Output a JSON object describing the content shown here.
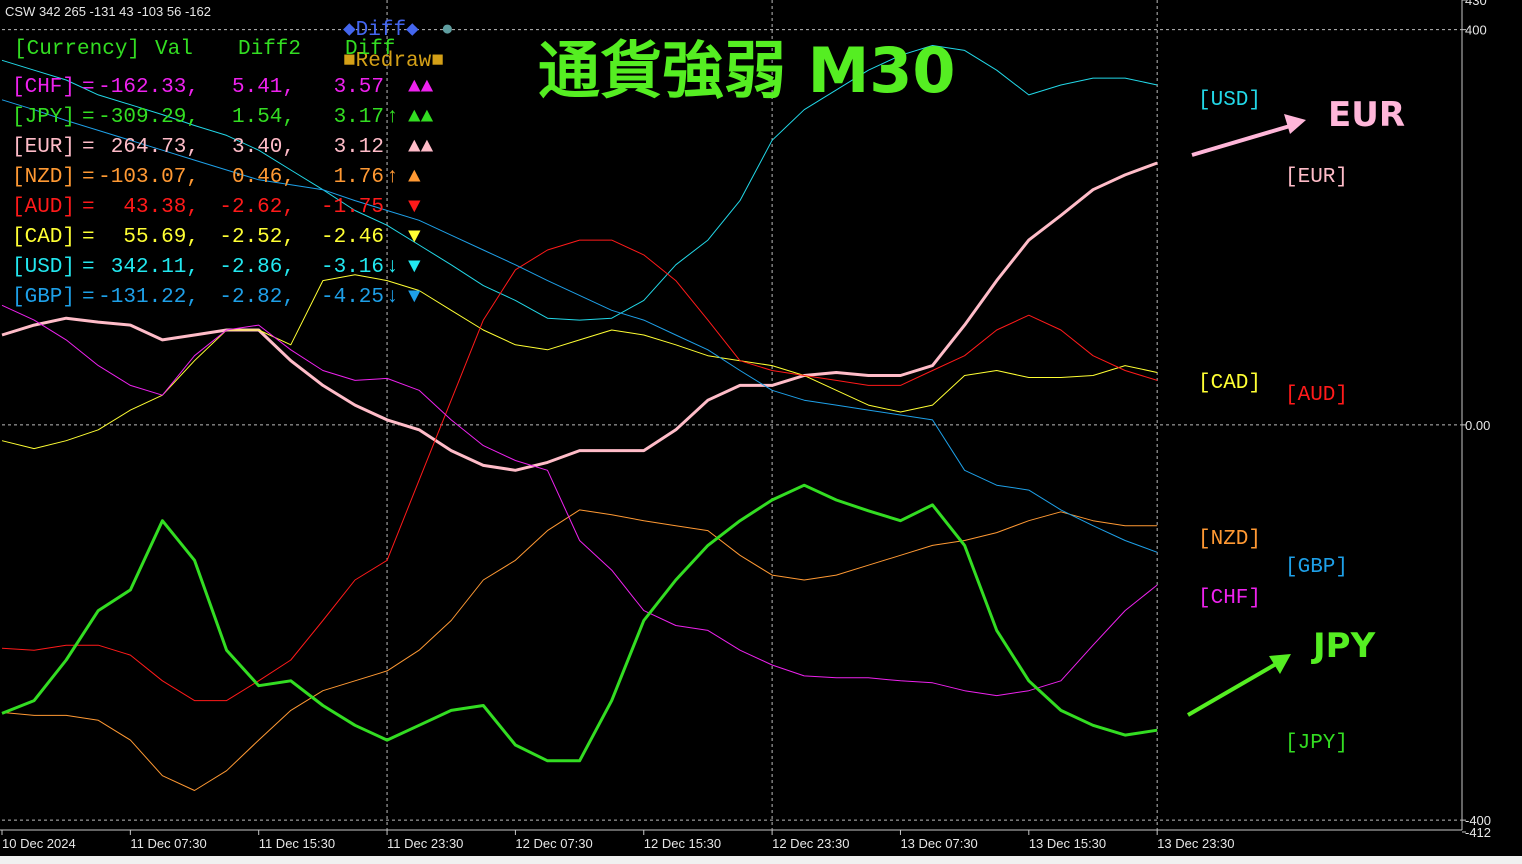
{
  "chart_data": {
    "type": "line",
    "title": "通貨強弱 M30",
    "header": "CSW 342 265 -131 43 -103 56 -162",
    "x": [
      0,
      1,
      2,
      3,
      4,
      5,
      6,
      7,
      8,
      9,
      10,
      11,
      12,
      13,
      14,
      15,
      16,
      17,
      18,
      19,
      20,
      21,
      22,
      23,
      24,
      25,
      26,
      27,
      28,
      29,
      30,
      31,
      32,
      33,
      34,
      35,
      36
    ],
    "xlim": [
      0,
      45.5
    ],
    "xticks": [
      {
        "value": 0,
        "label": "10 Dec 2024"
      },
      {
        "value": 4,
        "label": "11 Dec 07:30"
      },
      {
        "value": 8,
        "label": "11 Dec 15:30"
      },
      {
        "value": 12,
        "label": "11 Dec 23:30"
      },
      {
        "value": 16,
        "label": "12 Dec 07:30"
      },
      {
        "value": 20,
        "label": "12 Dec 15:30"
      },
      {
        "value": 24,
        "label": "12 Dec 23:30"
      },
      {
        "value": 28,
        "label": "13 Dec 07:30"
      },
      {
        "value": 32,
        "label": "13 Dec 15:30"
      },
      {
        "value": 36,
        "label": "13 Dec 23:30"
      }
    ],
    "ylim": [
      -410,
      430
    ],
    "yticks": [
      430,
      400,
      {
        "value": 0,
        "label": "0.00"
      },
      -400,
      -412
    ],
    "grid": true,
    "series": [
      {
        "name": "[USD]",
        "color": "#22d8e8",
        "width": 1,
        "values": [
          369,
          359,
          349,
          334,
          324,
          314,
          303,
          293,
          278,
          258,
          238,
          217,
          202,
          182,
          162,
          141,
          126,
          108,
          106,
          108,
          126,
          162,
          187,
          227,
          288,
          319,
          339,
          359,
          374,
          384,
          379,
          359,
          334,
          344,
          351,
          351,
          344
        ]
      },
      {
        "name": "[EUR]",
        "color": "#ffbcc8",
        "width": 3,
        "values": [
          91,
          101,
          108,
          104,
          101,
          86,
          91,
          96,
          96,
          65,
          40,
          20,
          5,
          -5,
          -26,
          -41,
          -46,
          -38,
          -26,
          -26,
          -26,
          -5,
          25,
          40,
          40,
          50,
          53,
          50,
          50,
          60,
          101,
          146,
          187,
          212,
          238,
          253,
          265
        ]
      },
      {
        "name": "[CAD]",
        "color": "#ffff33",
        "width": 1,
        "values": [
          -16,
          -24,
          -16,
          -5,
          15,
          30,
          65,
          96,
          96,
          81,
          146,
          152,
          146,
          136,
          116,
          96,
          81,
          76,
          86,
          96,
          91,
          81,
          70,
          65,
          60,
          50,
          35,
          20,
          13,
          20,
          50,
          55,
          48,
          48,
          50,
          60,
          53
        ]
      },
      {
        "name": "[AUD]",
        "color": "#ff1a1a",
        "width": 1,
        "values": [
          -226,
          -228,
          -223,
          -223,
          -233,
          -259,
          -279,
          -279,
          -259,
          -238,
          -198,
          -157,
          -137,
          -56,
          25,
          106,
          157,
          177,
          187,
          187,
          172,
          146,
          106,
          65,
          55,
          50,
          45,
          40,
          40,
          55,
          70,
          96,
          111,
          96,
          70,
          55,
          45
        ]
      },
      {
        "name": "[NZD]",
        "color": "#ff9933",
        "width": 1,
        "values": [
          -291,
          -294,
          -294,
          -299,
          -319,
          -355,
          -370,
          -350,
          -319,
          -289,
          -269,
          -259,
          -249,
          -228,
          -198,
          -157,
          -137,
          -107,
          -86,
          -91,
          -97,
          -102,
          -107,
          -132,
          -152,
          -157,
          -152,
          -142,
          -132,
          -122,
          -117,
          -109,
          -97,
          -88,
          -97,
          -102,
          -102
        ]
      },
      {
        "name": "[GBP]",
        "color": "#1ea0e8",
        "width": 1,
        "values": [
          329,
          319,
          308,
          298,
          288,
          278,
          268,
          258,
          248,
          243,
          238,
          227,
          217,
          207,
          192,
          177,
          162,
          146,
          131,
          116,
          106,
          91,
          76,
          55,
          35,
          25,
          20,
          15,
          10,
          5,
          -46,
          -61,
          -66,
          -86,
          -102,
          -117,
          -129
        ]
      },
      {
        "name": "[CHF]",
        "color": "#ee22ee",
        "width": 1,
        "values": [
          121,
          106,
          86,
          60,
          40,
          30,
          70,
          96,
          101,
          76,
          55,
          45,
          47,
          35,
          5,
          -21,
          -36,
          -46,
          -117,
          -147,
          -188,
          -203,
          -208,
          -228,
          -243,
          -254,
          -256,
          -256,
          -259,
          -261,
          -269,
          -274,
          -269,
          -259,
          -223,
          -188,
          -162
        ]
      },
      {
        "name": "[JPY]",
        "color": "#33dd22",
        "width": 3,
        "values": [
          -292,
          -279,
          -238,
          -188,
          -167,
          -97,
          -137,
          -228,
          -264,
          -259,
          -284,
          -304,
          -319,
          -304,
          -289,
          -284,
          -324,
          -340,
          -340,
          -279,
          -198,
          -157,
          -122,
          -97,
          -76,
          -61,
          -76,
          -87,
          -97,
          -81,
          -122,
          -208,
          -259,
          -289,
          -304,
          -314,
          -309
        ]
      }
    ],
    "big_labels": [
      "EUR",
      "JPY"
    ],
    "panel": {
      "buttons": [
        "◆Diff◆",
        "●",
        "■Redraw■"
      ],
      "columns": [
        "[Currency]",
        "Val",
        "Diff2",
        "Diff"
      ],
      "rows": [
        {
          "name": "[CHF]",
          "eq": "=",
          "val": "-162.33,",
          "diff2": "5.41,",
          "diff": "3.57",
          "arrows": "▲▲",
          "color": "#ee22ee"
        },
        {
          "name": "[JPY]",
          "eq": "=",
          "val": "-309.29,",
          "diff2": "1.54,",
          "diff": "3.17",
          "trend": "↑",
          "arrows": "▲▲",
          "color": "#33dd22"
        },
        {
          "name": "[EUR]",
          "eq": "=",
          "val": "264.73,",
          "diff2": "3.40,",
          "diff": "3.12",
          "arrows": "▲▲",
          "color": "#ffbcc8"
        },
        {
          "name": "[NZD]",
          "eq": "=",
          "val": "-103.07,",
          "diff2": "0.46,",
          "diff": "1.76",
          "trend": "↑",
          "arrows": "▲",
          "color": "#ff9933"
        },
        {
          "name": "[AUD]",
          "eq": "=",
          "val": "43.38,",
          "diff2": "-2.62,",
          "diff": "-1.75",
          "arrows": "▼",
          "color": "#ff1a1a"
        },
        {
          "name": "[CAD]",
          "eq": "=",
          "val": "55.69,",
          "diff2": "-2.52,",
          "diff": "-2.46",
          "arrows": "▼",
          "color": "#ffff33"
        },
        {
          "name": "[USD]",
          "eq": "=",
          "val": "342.11,",
          "diff2": "-2.86,",
          "diff": "-3.16",
          "trend": "↓",
          "arrows": "▼",
          "color": "#22e8f0"
        },
        {
          "name": "[GBP]",
          "eq": "=",
          "val": "-131.22,",
          "diff2": "-2.82,",
          "diff": "-4.25",
          "trend": "↓",
          "arrows": "▼",
          "color": "#1ea0e8"
        }
      ]
    }
  }
}
